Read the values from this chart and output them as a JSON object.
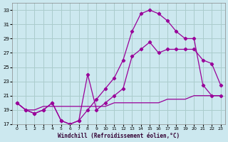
{
  "xlabel": "Windchill (Refroidissement éolien,°C)",
  "background_color": "#cce8ef",
  "grid_color": "#aacccc",
  "line_color": "#990099",
  "ylim": [
    17,
    34
  ],
  "yticks": [
    17,
    19,
    21,
    23,
    25,
    27,
    29,
    31,
    33
  ],
  "xlim": [
    -0.5,
    23.5
  ],
  "xticks": [
    0,
    1,
    2,
    3,
    4,
    5,
    6,
    7,
    8,
    9,
    10,
    11,
    12,
    13,
    14,
    15,
    16,
    17,
    18,
    19,
    20,
    21,
    22,
    23
  ],
  "series1_x": [
    0,
    1,
    2,
    3,
    4,
    5,
    6,
    7,
    8,
    9,
    10,
    11,
    12,
    13,
    14,
    15,
    16,
    17,
    18,
    19,
    20,
    21,
    22,
    23
  ],
  "series1_y": [
    20.0,
    19.0,
    18.5,
    19.0,
    20.0,
    17.5,
    17.0,
    17.5,
    24.0,
    19.0,
    20.0,
    21.0,
    22.0,
    26.5,
    27.5,
    28.5,
    27.0,
    27.5,
    27.5,
    27.5,
    27.5,
    26.0,
    25.5,
    22.5
  ],
  "series2_x": [
    0,
    1,
    2,
    3,
    4,
    5,
    6,
    7,
    8,
    9,
    10,
    11,
    12,
    13,
    14,
    15,
    16,
    17,
    18,
    19,
    20,
    21,
    22,
    23
  ],
  "series2_y": [
    20.0,
    19.0,
    18.5,
    19.0,
    20.0,
    17.5,
    17.0,
    17.5,
    19.0,
    20.5,
    22.0,
    23.5,
    26.0,
    30.0,
    32.5,
    33.0,
    32.5,
    31.5,
    30.0,
    29.0,
    29.0,
    22.5,
    21.0,
    21.0
  ],
  "series3_x": [
    0,
    1,
    2,
    3,
    4,
    5,
    6,
    7,
    8,
    9,
    10,
    11,
    12,
    13,
    14,
    15,
    16,
    17,
    18,
    19,
    20,
    21,
    22,
    23
  ],
  "series3_y": [
    20.0,
    19.0,
    19.0,
    19.5,
    19.5,
    19.5,
    19.5,
    19.5,
    19.5,
    19.5,
    19.5,
    20.0,
    20.0,
    20.0,
    20.0,
    20.0,
    20.0,
    20.5,
    20.5,
    20.5,
    21.0,
    21.0,
    21.0,
    21.0
  ]
}
